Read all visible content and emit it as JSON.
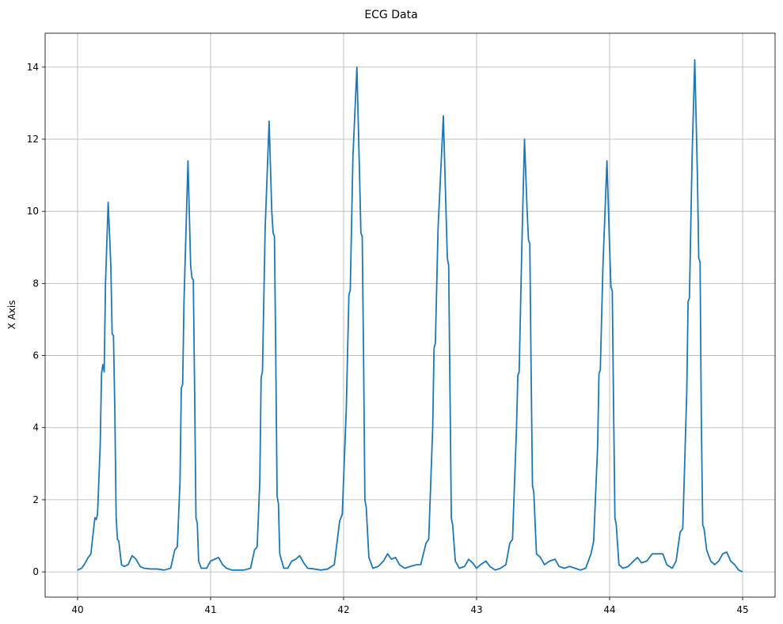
{
  "chart_data": {
    "type": "line",
    "title": "ECG Data",
    "y_label": "X Axis",
    "color": "#1f77b4",
    "grid": true,
    "xlim": [
      39.756,
      45.244
    ],
    "ylim": [
      -0.7,
      14.94
    ],
    "xticks": [
      40,
      41,
      42,
      43,
      44,
      45
    ],
    "yticks": [
      0,
      2,
      4,
      6,
      8,
      10,
      12,
      14
    ],
    "x": [
      40.0,
      40.03,
      40.05,
      40.08,
      40.1,
      40.13,
      40.14,
      40.15,
      40.17,
      40.18,
      40.19,
      40.2,
      40.21,
      40.23,
      40.25,
      40.26,
      40.27,
      40.28,
      40.29,
      40.3,
      40.31,
      40.33,
      40.35,
      40.38,
      40.41,
      40.44,
      40.47,
      40.5,
      40.55,
      40.6,
      40.65,
      40.7,
      40.73,
      40.75,
      40.77,
      40.78,
      40.79,
      40.8,
      40.83,
      40.85,
      40.86,
      40.87,
      40.88,
      40.89,
      40.9,
      40.91,
      40.93,
      40.97,
      41.0,
      41.03,
      41.06,
      41.09,
      41.12,
      41.16,
      41.2,
      41.25,
      41.3,
      41.33,
      41.35,
      41.37,
      41.38,
      41.39,
      41.41,
      41.44,
      41.46,
      41.47,
      41.48,
      41.49,
      41.5,
      41.51,
      41.52,
      41.55,
      41.58,
      41.61,
      41.64,
      41.67,
      41.7,
      41.73,
      41.78,
      41.83,
      41.88,
      41.93,
      41.97,
      41.99,
      42.02,
      42.04,
      42.05,
      42.07,
      42.1,
      42.12,
      42.13,
      42.14,
      42.15,
      42.16,
      42.17,
      42.19,
      42.22,
      42.26,
      42.3,
      42.33,
      42.36,
      42.39,
      42.42,
      42.46,
      42.5,
      42.55,
      42.58,
      42.62,
      42.64,
      42.67,
      42.68,
      42.69,
      42.71,
      42.75,
      42.77,
      42.78,
      42.79,
      42.8,
      42.81,
      42.82,
      42.84,
      42.87,
      42.91,
      42.94,
      42.97,
      43.0,
      43.03,
      43.07,
      43.1,
      43.14,
      43.18,
      43.22,
      43.25,
      43.27,
      43.3,
      43.31,
      43.32,
      43.34,
      43.36,
      43.38,
      43.39,
      43.4,
      43.41,
      43.42,
      43.43,
      43.45,
      43.48,
      43.51,
      43.55,
      43.59,
      43.62,
      43.66,
      43.7,
      43.74,
      43.78,
      43.82,
      43.86,
      43.88,
      43.91,
      43.92,
      43.93,
      43.95,
      43.98,
      44.0,
      44.01,
      44.02,
      44.03,
      44.04,
      44.05,
      44.07,
      44.1,
      44.14,
      44.18,
      44.21,
      44.24,
      44.28,
      44.32,
      44.36,
      44.4,
      44.43,
      44.47,
      44.5,
      44.53,
      44.55,
      44.58,
      44.59,
      44.6,
      44.62,
      44.64,
      44.66,
      44.67,
      44.68,
      44.69,
      44.7,
      44.71,
      44.73,
      44.76,
      44.79,
      44.82,
      44.85,
      44.88,
      44.91,
      44.94,
      44.97,
      45.0
    ],
    "values": [
      0.05,
      0.1,
      0.2,
      0.4,
      0.5,
      1.5,
      1.45,
      1.6,
      3.5,
      5.5,
      5.75,
      5.55,
      8.0,
      10.25,
      8.5,
      6.6,
      6.55,
      4.5,
      1.5,
      0.9,
      0.85,
      0.2,
      0.15,
      0.2,
      0.45,
      0.35,
      0.15,
      0.1,
      0.08,
      0.08,
      0.05,
      0.1,
      0.6,
      0.7,
      2.5,
      5.1,
      5.2,
      7.5,
      11.4,
      8.5,
      8.15,
      8.1,
      5.0,
      1.5,
      1.35,
      0.3,
      0.1,
      0.1,
      0.3,
      0.35,
      0.4,
      0.2,
      0.1,
      0.05,
      0.05,
      0.05,
      0.1,
      0.6,
      0.7,
      2.5,
      5.4,
      5.55,
      9.5,
      12.5,
      10.0,
      9.4,
      9.3,
      6.0,
      2.1,
      1.9,
      0.5,
      0.1,
      0.1,
      0.3,
      0.35,
      0.45,
      0.25,
      0.1,
      0.08,
      0.05,
      0.08,
      0.2,
      1.4,
      1.6,
      4.5,
      7.7,
      7.8,
      11.5,
      14.0,
      11.0,
      9.4,
      9.3,
      6.0,
      2.0,
      1.8,
      0.4,
      0.1,
      0.15,
      0.3,
      0.5,
      0.35,
      0.4,
      0.2,
      0.1,
      0.15,
      0.2,
      0.2,
      0.8,
      0.9,
      4.0,
      6.2,
      6.35,
      9.5,
      12.65,
      10.0,
      8.7,
      8.5,
      5.0,
      1.5,
      1.3,
      0.3,
      0.1,
      0.15,
      0.35,
      0.25,
      0.1,
      0.2,
      0.3,
      0.15,
      0.05,
      0.1,
      0.2,
      0.8,
      0.9,
      4.0,
      5.45,
      5.55,
      9.0,
      12.0,
      10.0,
      9.2,
      9.1,
      5.5,
      2.4,
      2.2,
      0.5,
      0.4,
      0.2,
      0.3,
      0.35,
      0.15,
      0.1,
      0.15,
      0.1,
      0.05,
      0.1,
      0.5,
      0.85,
      3.5,
      5.5,
      5.6,
      8.5,
      11.4,
      9.0,
      7.9,
      7.8,
      4.5,
      1.5,
      1.3,
      0.2,
      0.1,
      0.15,
      0.3,
      0.4,
      0.25,
      0.3,
      0.5,
      0.5,
      0.5,
      0.2,
      0.1,
      0.3,
      1.1,
      1.2,
      5.0,
      7.5,
      7.6,
      11.5,
      14.2,
      11.0,
      8.7,
      8.6,
      4.0,
      1.3,
      1.2,
      0.6,
      0.3,
      0.2,
      0.3,
      0.5,
      0.55,
      0.3,
      0.2,
      0.05,
      0.0
    ]
  }
}
